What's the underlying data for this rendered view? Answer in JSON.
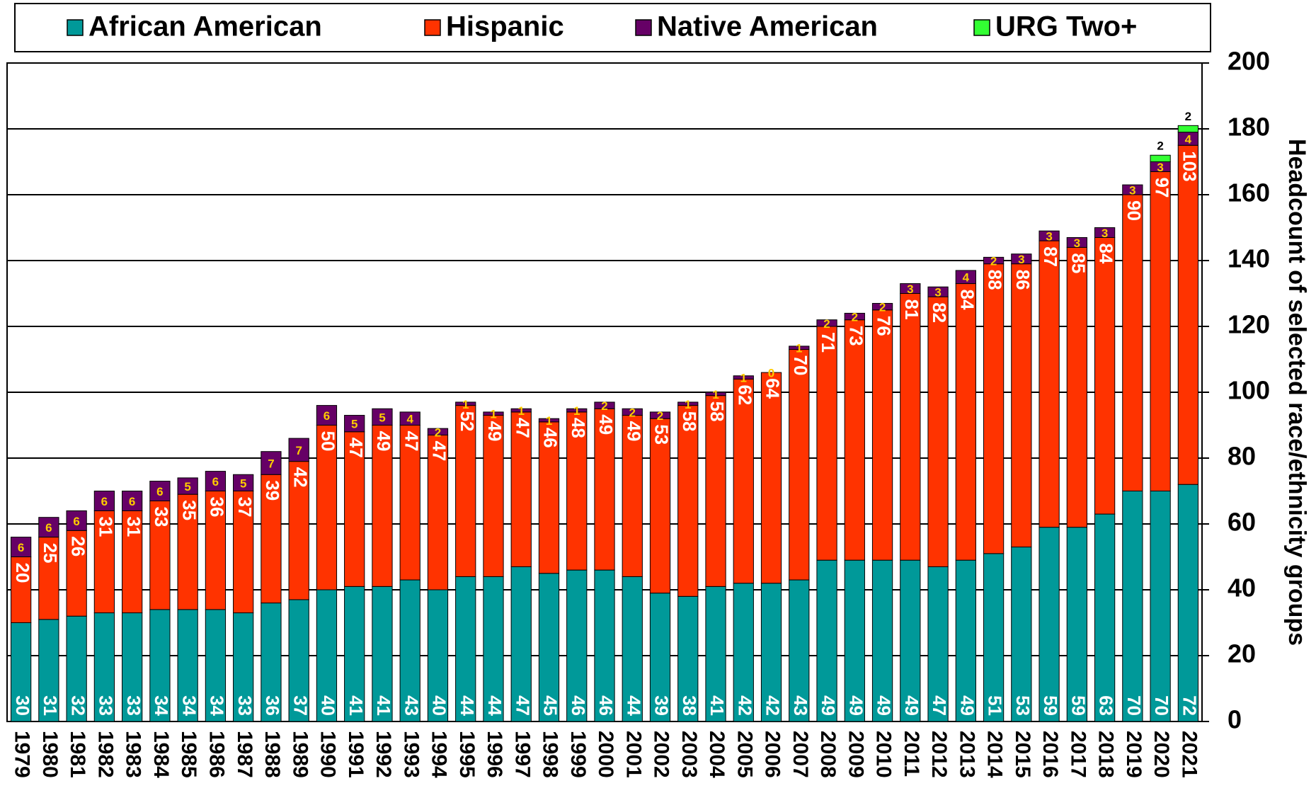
{
  "chart_data": {
    "type": "stacked_bar",
    "y_label": "Headcount of selected race/ethnicity groups",
    "categories": [
      "1979",
      "1980",
      "1981",
      "1982",
      "1983",
      "1984",
      "1985",
      "1986",
      "1987",
      "1988",
      "1989",
      "1990",
      "1991",
      "1992",
      "1993",
      "1994",
      "1995",
      "1996",
      "1997",
      "1998",
      "1999",
      "2000",
      "2001",
      "2002",
      "2003",
      "2004",
      "2005",
      "2006",
      "2007",
      "2008",
      "2009",
      "2010",
      "2011",
      "2012",
      "2013",
      "2014",
      "2015",
      "2016",
      "2017",
      "2018",
      "2019",
      "2020",
      "2021"
    ],
    "series": [
      {
        "name": "African American",
        "color": "#009999",
        "values": [
          30,
          31,
          32,
          33,
          33,
          34,
          34,
          34,
          33,
          36,
          37,
          40,
          41,
          41,
          43,
          40,
          44,
          44,
          47,
          45,
          46,
          46,
          44,
          39,
          38,
          41,
          42,
          42,
          43,
          49,
          49,
          49,
          49,
          47,
          49,
          51,
          53,
          59,
          59,
          63,
          70,
          70,
          72
        ]
      },
      {
        "name": "Hispanic",
        "color": "#ff3300",
        "values": [
          20,
          25,
          26,
          31,
          31,
          33,
          35,
          36,
          37,
          39,
          42,
          50,
          47,
          49,
          47,
          47,
          52,
          49,
          47,
          46,
          48,
          49,
          49,
          53,
          58,
          58,
          62,
          64,
          70,
          71,
          73,
          76,
          81,
          82,
          84,
          88,
          86,
          87,
          85,
          84,
          90,
          97,
          103
        ]
      },
      {
        "name": "Native American",
        "color": "#660066",
        "values": [
          6,
          6,
          6,
          6,
          6,
          6,
          5,
          6,
          5,
          7,
          7,
          6,
          5,
          5,
          4,
          2,
          1,
          1,
          1,
          1,
          1,
          2,
          2,
          2,
          1,
          1,
          1,
          0,
          1,
          2,
          2,
          2,
          3,
          3,
          4,
          2,
          3,
          3,
          3,
          3,
          3,
          3,
          4
        ]
      },
      {
        "name": "URG Two+",
        "color": "#33ff33",
        "values": [
          null,
          null,
          null,
          null,
          null,
          null,
          null,
          null,
          null,
          null,
          null,
          null,
          null,
          null,
          null,
          null,
          null,
          null,
          null,
          null,
          null,
          null,
          null,
          null,
          null,
          null,
          null,
          null,
          null,
          null,
          null,
          null,
          null,
          null,
          null,
          null,
          null,
          null,
          null,
          null,
          null,
          2,
          2
        ]
      }
    ],
    "ylim": [
      0,
      200
    ],
    "yticks": [
      0,
      20,
      40,
      60,
      80,
      100,
      120,
      140,
      160,
      180,
      200
    ],
    "grid": true,
    "y_axis_side": "right",
    "legend": "top"
  }
}
